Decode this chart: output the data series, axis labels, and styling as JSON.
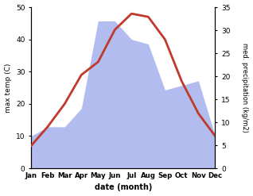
{
  "months": [
    "Jan",
    "Feb",
    "Mar",
    "Apr",
    "May",
    "Jun",
    "Jul",
    "Aug",
    "Sep",
    "Oct",
    "Nov",
    "Dec"
  ],
  "month_indices": [
    1,
    2,
    3,
    4,
    5,
    6,
    7,
    8,
    9,
    10,
    11,
    12
  ],
  "temperature": [
    7,
    13,
    20,
    29,
    33,
    43,
    48,
    47,
    40,
    27,
    17,
    10
  ],
  "precipitation": [
    7,
    9,
    9,
    13,
    32,
    32,
    28,
    27,
    17,
    18,
    19,
    7
  ],
  "temp_ylim": [
    0,
    50
  ],
  "precip_ylim": [
    0,
    35
  ],
  "temp_color": "#c0392b",
  "precip_fill_color": "#b3bcee",
  "xlabel": "date (month)",
  "ylabel_left": "max temp (C)",
  "ylabel_right": "med. precipitation (kg/m2)",
  "background_color": "#ffffff",
  "temp_linewidth": 2.0,
  "yticks_left": [
    0,
    10,
    20,
    30,
    40,
    50
  ],
  "yticks_right": [
    0,
    5,
    10,
    15,
    20,
    25,
    30,
    35
  ]
}
